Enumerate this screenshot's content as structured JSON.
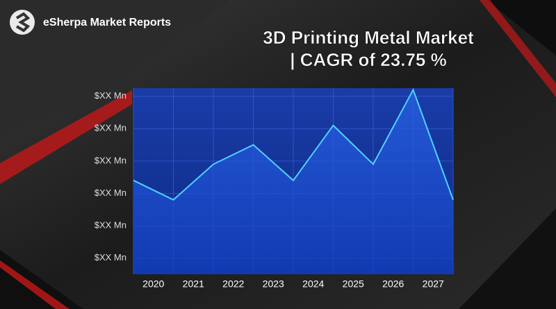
{
  "brand": "eSherpa Market Reports",
  "chart_data": {
    "type": "line",
    "title": "3D Printing Metal Market",
    "subtitle": "| CAGR of 23.75 %",
    "x": [
      2019.5,
      2020.5,
      2021.5,
      2022.5,
      2023.5,
      2024.5,
      2025.5,
      2026.5,
      2027.5
    ],
    "xlim": [
      2019.5,
      2027.5
    ],
    "xticks": [
      2020,
      2021,
      2022,
      2023,
      2024,
      2025,
      2026,
      2027
    ],
    "values": [
      3.4,
      2.8,
      3.9,
      4.5,
      3.4,
      5.1,
      3.9,
      6.2,
      2.8
    ],
    "color": "#4fd3ff",
    "ylim": [
      0.5,
      6.25
    ],
    "yticks": [
      {
        "value": 1,
        "label": "$XX Mn"
      },
      {
        "value": 2,
        "label": "$XX Mn"
      },
      {
        "value": 3,
        "label": "$XX Mn"
      },
      {
        "value": 4,
        "label": "$XX Mn"
      },
      {
        "value": 5,
        "label": "$XX Mn"
      },
      {
        "value": 6,
        "label": "$XX Mn"
      }
    ],
    "grid": true
  }
}
